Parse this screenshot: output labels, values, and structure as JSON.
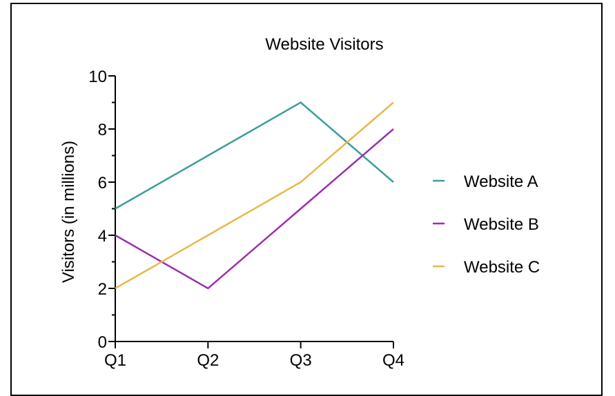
{
  "chart_data": {
    "type": "line",
    "title": "Website Visitors",
    "xlabel": "",
    "ylabel": "Visitors (in millions)",
    "categories": [
      "Q1",
      "Q2",
      "Q3",
      "Q4"
    ],
    "ylim": [
      0,
      10
    ],
    "yticks": [
      0,
      2,
      4,
      6,
      8,
      10
    ],
    "yminor_ticks": [
      1,
      3,
      5,
      7,
      9
    ],
    "grid": false,
    "legend_position": "right",
    "series": [
      {
        "name": "Website A",
        "values": [
          5,
          7,
          9,
          6
        ],
        "color": "#3a9e9a"
      },
      {
        "name": "Website B",
        "values": [
          4,
          2,
          5,
          8
        ],
        "color": "#9b2fae"
      },
      {
        "name": "Website C",
        "values": [
          2,
          4,
          6,
          9
        ],
        "color": "#e8b84a"
      }
    ]
  }
}
